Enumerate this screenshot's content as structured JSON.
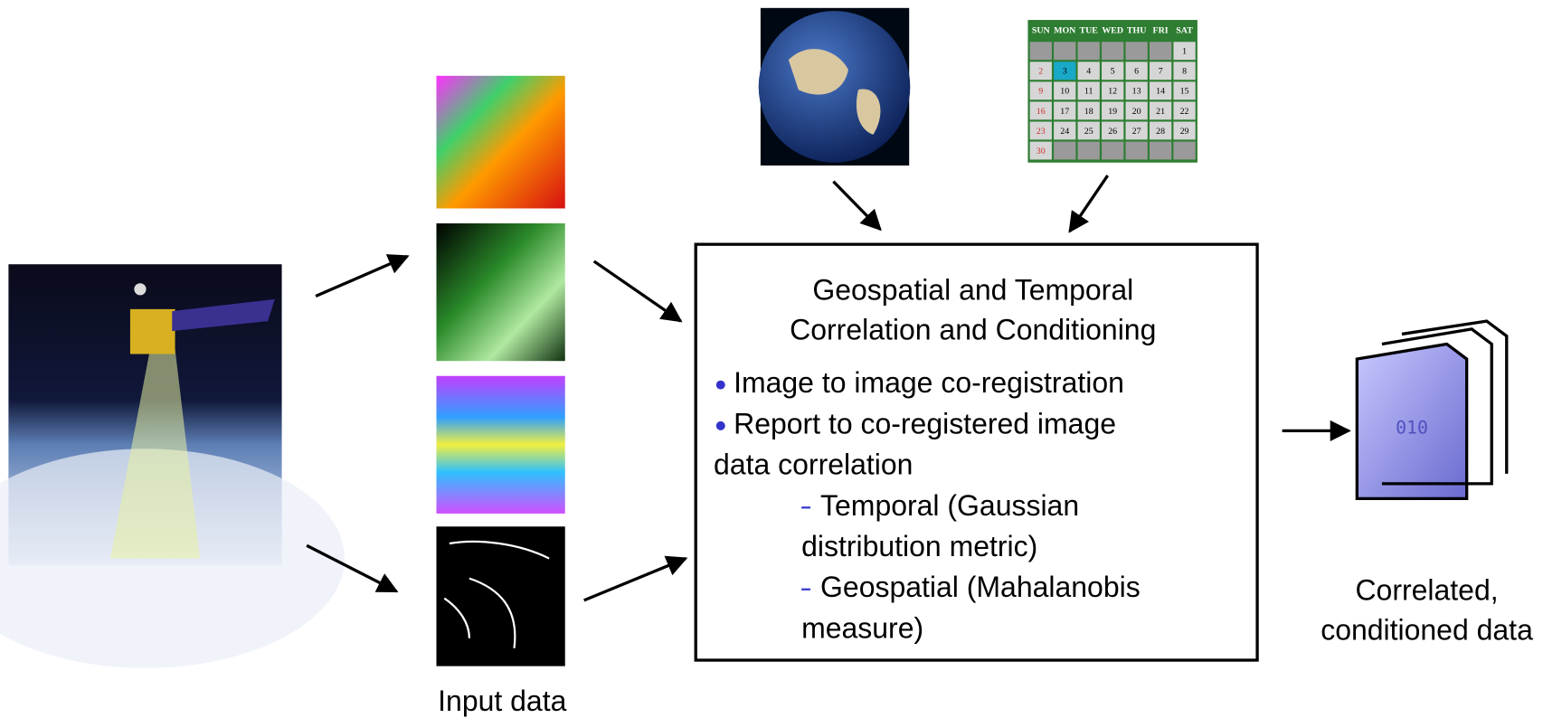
{
  "input_label": "Input data",
  "output_label": [
    "Correlated,",
    "conditioned data"
  ],
  "box": {
    "title": [
      "Geospatial and Temporal",
      "Correlation and Conditioning"
    ],
    "bullets": [
      [
        "Image to image co-registration"
      ],
      [
        "Report to co-registered image",
        "data correlation"
      ]
    ],
    "sub_items": [
      [
        "Temporal (Gaussian",
        "distribution metric)"
      ],
      [
        "Geospatial (Mahalanobis",
        "measure)"
      ]
    ]
  },
  "calendar": {
    "days": [
      "SUN",
      "MON",
      "TUE",
      "WED",
      "THU",
      "FRI",
      "SAT"
    ],
    "weeks": [
      [
        null,
        null,
        null,
        null,
        null,
        null,
        1
      ],
      [
        2,
        3,
        4,
        5,
        6,
        7,
        8
      ],
      [
        9,
        10,
        11,
        12,
        13,
        14,
        15
      ],
      [
        16,
        17,
        18,
        19,
        20,
        21,
        22
      ],
      [
        23,
        24,
        25,
        26,
        27,
        28,
        29
      ],
      [
        30,
        null,
        null,
        null,
        null,
        null,
        null
      ]
    ]
  }
}
